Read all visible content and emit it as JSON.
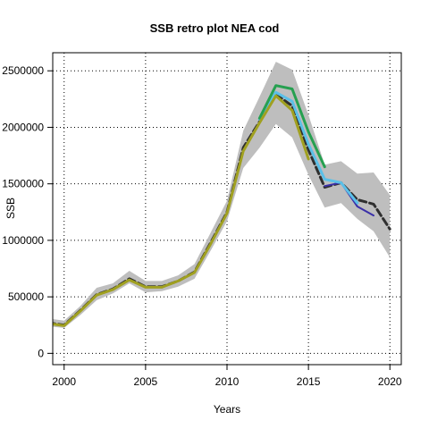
{
  "chart_data": {
    "type": "line",
    "title": "SSB retro plot NEA cod",
    "xlabel": "Years",
    "ylabel": "SSB",
    "xlim": [
      1999.3,
      2020.7
    ],
    "ylim": [
      -100000,
      2660000
    ],
    "x_ticks": [
      2000,
      2005,
      2010,
      2015,
      2020
    ],
    "y_ticks": [
      0,
      500000,
      1000000,
      1500000,
      2000000,
      2500000
    ],
    "y_tick_labels": [
      "0",
      "500000",
      "1000000",
      "1500000",
      "2000000",
      "2500000"
    ],
    "grid": "dotted",
    "confidence_band": {
      "color": "#bebebe",
      "years": [
        1999,
        2000,
        2001,
        2002,
        2003,
        2004,
        2005,
        2006,
        2007,
        2008,
        2009,
        2010,
        2011,
        2012,
        2013,
        2014,
        2015,
        2016,
        2017,
        2018,
        2019,
        2020
      ],
      "lower": [
        240000,
        225000,
        340000,
        470000,
        530000,
        620000,
        540000,
        550000,
        590000,
        660000,
        910000,
        1170000,
        1640000,
        1820000,
        2030000,
        1910000,
        1580000,
        1290000,
        1330000,
        1190000,
        1080000,
        850000
      ],
      "upper": [
        310000,
        290000,
        420000,
        580000,
        620000,
        730000,
        640000,
        640000,
        690000,
        790000,
        1070000,
        1350000,
        1970000,
        2270000,
        2580000,
        2510000,
        2110000,
        1670000,
        1700000,
        1590000,
        1600000,
        1400000
      ]
    },
    "series": [
      {
        "color": "#2f2f2f",
        "dashed": true,
        "x": [
          1999,
          2000,
          2001,
          2002,
          2003,
          2004,
          2005,
          2006,
          2007,
          2008,
          2009,
          2010,
          2011,
          2012,
          2013,
          2014,
          2015,
          2016,
          2017,
          2018,
          2019,
          2020
        ],
        "y": [
          270000,
          250000,
          380000,
          520000,
          570000,
          660000,
          590000,
          590000,
          640000,
          720000,
          980000,
          1250000,
          1820000,
          2050000,
          2290000,
          2190000,
          1800000,
          1470000,
          1510000,
          1360000,
          1320000,
          1100000
        ]
      },
      {
        "color": "#3a2fa8",
        "x": [
          2016,
          2017,
          2018,
          2019
        ],
        "y": [
          1480000,
          1510000,
          1300000,
          1220000
        ]
      },
      {
        "color": "#5bc0e8",
        "x": [
          2012,
          2013,
          2014,
          2015,
          2016,
          2017,
          2018
        ],
        "y": [
          2070000,
          2310000,
          2230000,
          1850000,
          1540000,
          1510000,
          1330000
        ]
      },
      {
        "color": "#26a050",
        "x": [
          2012,
          2013,
          2014,
          2015,
          2016
        ],
        "y": [
          2080000,
          2370000,
          2340000,
          1960000,
          1650000
        ]
      },
      {
        "color": "#a0a020",
        "x": [
          1999,
          2000,
          2001,
          2002,
          2003,
          2004,
          2005,
          2006,
          2007,
          2008,
          2009,
          2010,
          2011,
          2012,
          2013,
          2014,
          2015
        ],
        "y": [
          265000,
          245000,
          375000,
          515000,
          565000,
          650000,
          585000,
          585000,
          640000,
          715000,
          970000,
          1240000,
          1790000,
          2040000,
          2280000,
          2150000,
          1720000
        ]
      }
    ]
  }
}
